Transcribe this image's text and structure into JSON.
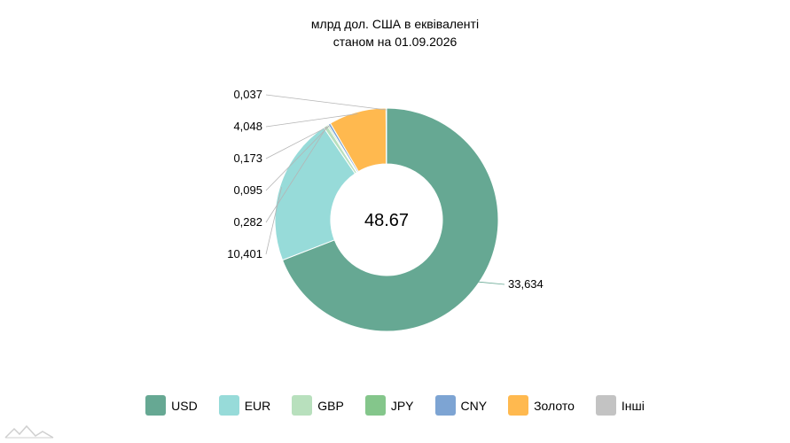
{
  "title_line1": "млрд дол. США в еквіваленті",
  "title_line2": "станом на 01.09.2026",
  "center_total": "48.67",
  "chart_data": {
    "type": "pie",
    "subtype": "donut",
    "title": "млрд дол. США в еквіваленті станом на 01.09.2026",
    "categories": [
      "USD",
      "EUR",
      "GBP",
      "JPY",
      "CNY",
      "Золото",
      "Інші"
    ],
    "values": [
      33.634,
      10.401,
      0.282,
      0.095,
      0.173,
      4.048,
      0.037
    ],
    "labels": [
      "33,634",
      "10,401",
      "0,282",
      "0,095",
      "0,173",
      "4,048",
      "0,037"
    ],
    "colors": [
      "#66a893",
      "#97dbd9",
      "#b8e0bd",
      "#84c68b",
      "#7da4d3",
      "#ffb94f",
      "#c3c3c3"
    ],
    "center_label": "48.67",
    "legend_position": "bottom"
  },
  "legend": [
    {
      "label": "USD",
      "color": "#66a893"
    },
    {
      "label": "EUR",
      "color": "#97dbd9"
    },
    {
      "label": "GBP",
      "color": "#b8e0bd"
    },
    {
      "label": "JPY",
      "color": "#84c68b"
    },
    {
      "label": "CNY",
      "color": "#7da4d3"
    },
    {
      "label": "Золото",
      "color": "#ffb94f"
    },
    {
      "label": "Інші",
      "color": "#c3c3c3"
    }
  ]
}
